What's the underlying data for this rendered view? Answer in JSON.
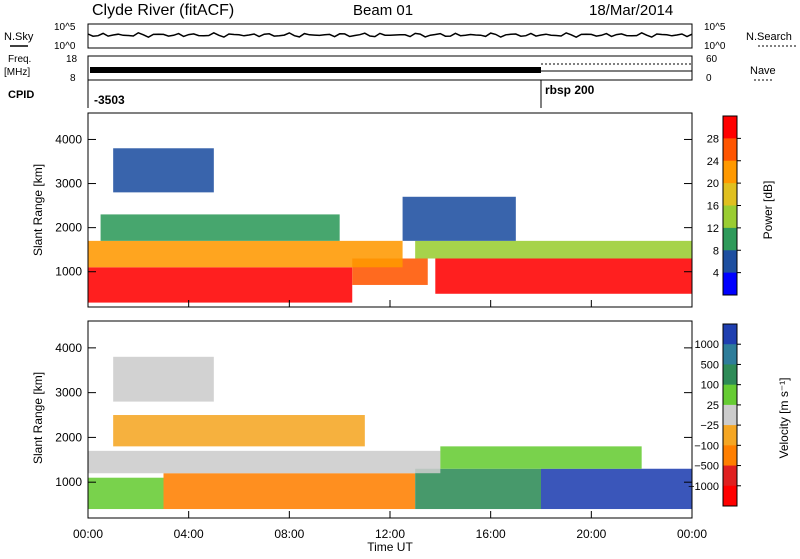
{
  "header": {
    "station": "Clyde River (fitACF)",
    "beam": "Beam 01",
    "date": "18/Mar/2014"
  },
  "small_panels": {
    "nsky_label": "N.Sky",
    "nsearch_label": "N.Search",
    "nsky_ticks": [
      "10^5",
      "10^0"
    ],
    "nsearch_ticks": [
      "10^5",
      "10^0"
    ],
    "freq_label_1": "Freq.",
    "freq_label_2": "[MHz]",
    "freq_ticks": [
      "18",
      "8"
    ],
    "nave_label": "Nave",
    "nave_ticks": [
      "60",
      "0"
    ],
    "cpid_label": "CPID",
    "cpid_1": "-3503",
    "cpid_2": "rbsp 200",
    "cpid_change_hour": 18
  },
  "x_axis": {
    "label": "Time UT",
    "ticks": [
      "00:00",
      "04:00",
      "08:00",
      "12:00",
      "16:00",
      "20:00",
      "00:00"
    ],
    "range_hours": [
      0,
      24
    ]
  },
  "chart_data": [
    {
      "type": "heatmap",
      "name": "power",
      "ylabel": "Slant Range [km]",
      "yticks": [
        1000,
        2000,
        3000,
        4000
      ],
      "ylim": [
        200,
        4600
      ],
      "xlim": [
        0,
        24
      ],
      "colorbar": {
        "label": "Power [dB]",
        "ticks": [
          "28",
          "24",
          "20",
          "16",
          "12",
          "8",
          "4"
        ],
        "colors": [
          "#ff0000",
          "#ff5500",
          "#ff9900",
          "#e0c020",
          "#9acd32",
          "#2e9a5a",
          "#1e4fa0",
          "#0000ff"
        ]
      },
      "bands": [
        {
          "x0": 0.0,
          "x1": 10.5,
          "y0": 300,
          "y1": 1100,
          "level": 0
        },
        {
          "x0": 10.5,
          "x1": 13.5,
          "y0": 700,
          "y1": 1300,
          "level": 1
        },
        {
          "x0": 13.8,
          "x1": 24.0,
          "y0": 500,
          "y1": 1300,
          "level": 0
        },
        {
          "x0": 0.0,
          "x1": 12.5,
          "y0": 1100,
          "y1": 1700,
          "level": 2
        },
        {
          "x0": 13.0,
          "x1": 24.0,
          "y0": 1300,
          "y1": 1700,
          "level": 4
        },
        {
          "x0": 0.5,
          "x1": 10.0,
          "y0": 1700,
          "y1": 2300,
          "level": 5
        },
        {
          "x0": 12.5,
          "x1": 17.0,
          "y0": 1700,
          "y1": 2700,
          "level": 6
        },
        {
          "x0": 1.0,
          "x1": 5.0,
          "y0": 2800,
          "y1": 3800,
          "level": 6
        }
      ]
    },
    {
      "type": "heatmap",
      "name": "velocity",
      "ylabel": "Slant Range [km]",
      "yticks": [
        1000,
        2000,
        3000,
        4000
      ],
      "ylim": [
        200,
        4600
      ],
      "xlim": [
        0,
        24
      ],
      "colorbar": {
        "label": "Velocity [m s⁻¹]",
        "ticks": [
          "1000",
          "500",
          "100",
          "25",
          "−25",
          "−100",
          "−500",
          "−1000"
        ],
        "colors": [
          "#1f3fb0",
          "#2e7d9a",
          "#2e8b57",
          "#66cc33",
          "#cccccc",
          "#f5a623",
          "#ff7f00",
          "#e02020",
          "#ff0000"
        ]
      },
      "bands": [
        {
          "x0": 0.0,
          "x1": 3.0,
          "y0": 400,
          "y1": 1100,
          "level": 3
        },
        {
          "x0": 3.0,
          "x1": 13.0,
          "y0": 400,
          "y1": 1200,
          "level": 6
        },
        {
          "x0": 13.0,
          "x1": 18.0,
          "y0": 400,
          "y1": 1300,
          "level": 2
        },
        {
          "x0": 18.0,
          "x1": 24.0,
          "y0": 400,
          "y1": 1300,
          "level": 0
        },
        {
          "x0": 0.0,
          "x1": 14.0,
          "y0": 1200,
          "y1": 1700,
          "level": 4
        },
        {
          "x0": 1.0,
          "x1": 11.0,
          "y0": 1800,
          "y1": 2500,
          "level": 5
        },
        {
          "x0": 14.0,
          "x1": 22.0,
          "y0": 1300,
          "y1": 1800,
          "level": 3
        },
        {
          "x0": 1.0,
          "x1": 5.0,
          "y0": 2800,
          "y1": 3800,
          "level": 4
        }
      ]
    }
  ]
}
